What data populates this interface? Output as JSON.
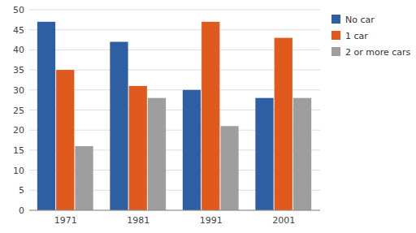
{
  "chart_data": {
    "type": "bar",
    "categories": [
      "1971",
      "1981",
      "1991",
      "2001"
    ],
    "series": [
      {
        "name": "No car",
        "color": "#2E5FA3",
        "values": [
          47,
          42,
          30,
          28
        ]
      },
      {
        "name": "1 car",
        "color": "#E05A1E",
        "values": [
          35,
          31,
          47,
          43
        ]
      },
      {
        "name": "2 or more cars",
        "color": "#9E9E9E",
        "values": [
          16,
          28,
          21,
          28
        ]
      }
    ],
    "ylim": [
      0,
      50
    ],
    "yticks": [
      0,
      5,
      10,
      15,
      20,
      25,
      30,
      35,
      40,
      45,
      50
    ],
    "grid": true,
    "legend": "upper right"
  }
}
